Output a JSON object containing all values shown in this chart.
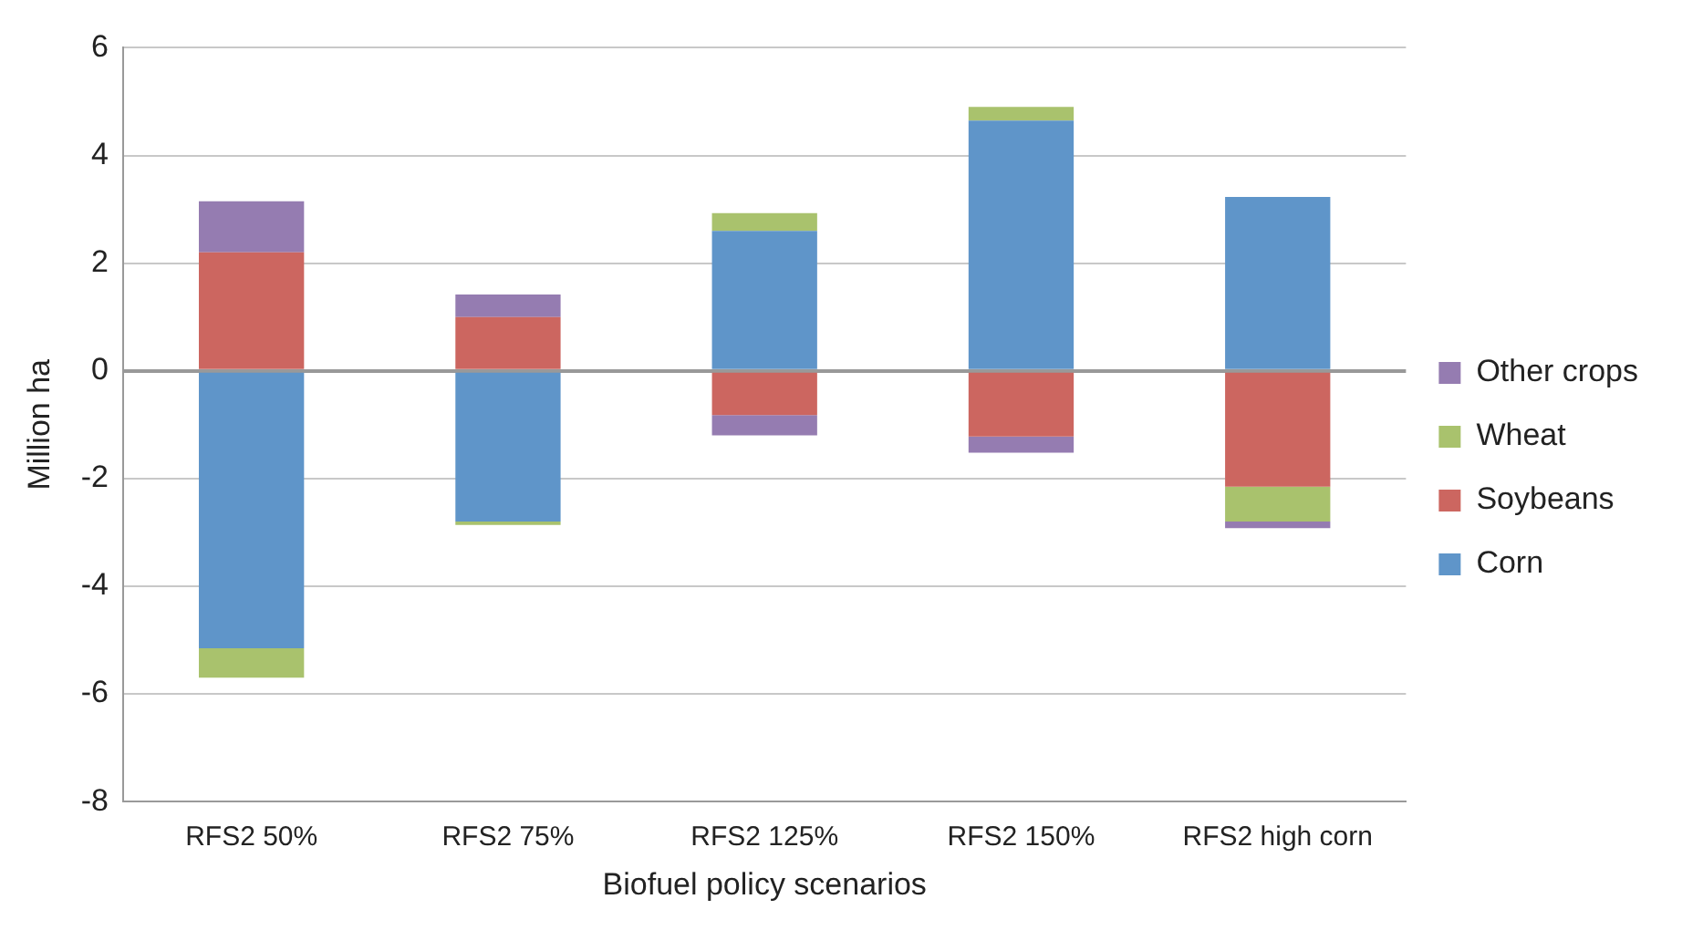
{
  "chart_data": {
    "type": "bar",
    "stacked": true,
    "xlabel": "Biofuel policy scenarios",
    "ylabel": "Million ha",
    "categories": [
      "RFS2 50%",
      "RFS2 75%",
      "RFS2 125%",
      "RFS2 150%",
      "RFS2 high corn"
    ],
    "series": [
      {
        "name": "Corn",
        "color": "#5f95c9",
        "values": [
          -5.15,
          -2.8,
          2.6,
          4.65,
          3.23
        ]
      },
      {
        "name": "Soybeans",
        "color": "#cc6660",
        "values": [
          2.2,
          1.0,
          -0.82,
          -1.22,
          -2.15
        ]
      },
      {
        "name": "Wheat",
        "color": "#a9c26d",
        "values": [
          -0.55,
          -0.06,
          0.33,
          0.25,
          -0.65
        ]
      },
      {
        "name": "Other crops",
        "color": "#957cb1",
        "values": [
          0.95,
          0.42,
          -0.38,
          -0.3,
          -0.12
        ]
      }
    ],
    "ylim": [
      -8,
      6
    ],
    "yticks": [
      -8,
      -6,
      -4,
      -2,
      0,
      2,
      4,
      6
    ],
    "grid": "y",
    "legend": "right"
  }
}
